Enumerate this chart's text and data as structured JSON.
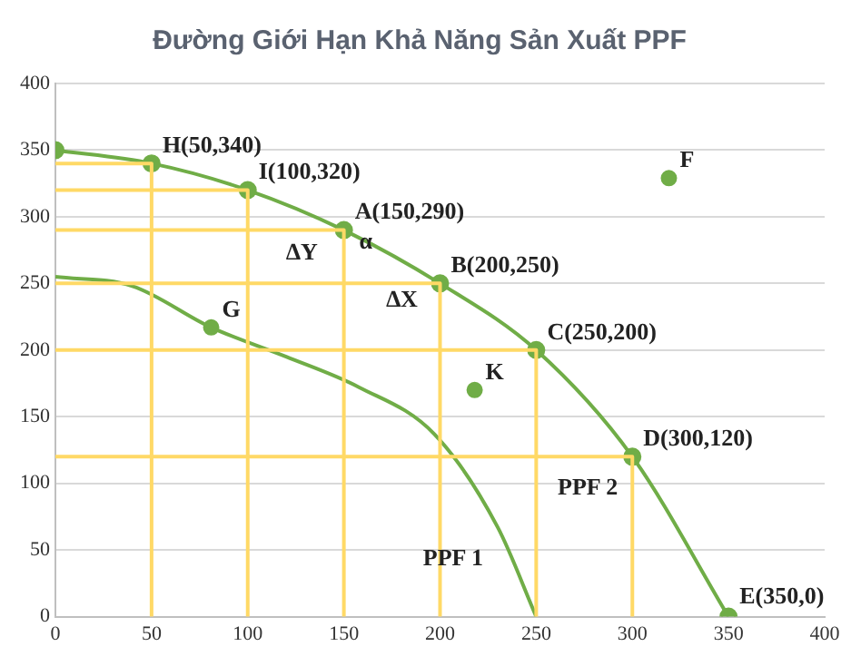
{
  "chart_data": {
    "type": "line",
    "title": "Đường Giới Hạn Khả Năng Sản Xuất PPF",
    "series": [
      {
        "color": "#ffd966",
        "marker": "none",
        "x": [
          0,
          50,
          50
        ],
        "values": [
          340,
          340,
          0
        ]
      },
      {
        "color": "#ffd966",
        "marker": "none",
        "x": [
          0,
          100,
          100
        ],
        "values": [
          320,
          320,
          0
        ]
      },
      {
        "color": "#ffd966",
        "marker": "none",
        "x": [
          0,
          150,
          150
        ],
        "values": [
          290,
          290,
          0
        ]
      },
      {
        "color": "#ffd966",
        "marker": "none",
        "x": [
          0,
          200,
          200
        ],
        "values": [
          250,
          250,
          0
        ]
      },
      {
        "color": "#ffd966",
        "marker": "none",
        "x": [
          0,
          250,
          250
        ],
        "values": [
          200,
          200,
          0
        ]
      },
      {
        "color": "#ffd966",
        "marker": "none",
        "x": [
          0,
          300,
          300
        ],
        "values": [
          120,
          120,
          0
        ]
      },
      {
        "name": "PPF 1",
        "color": "#70ad47",
        "marker": "none",
        "x": [
          0,
          40,
          81,
          120,
          158,
          197,
          230,
          250
        ],
        "values": [
          255,
          248,
          217,
          195,
          172,
          137,
          67,
          0
        ]
      },
      {
        "name": "PPF 2",
        "color": "#70ad47",
        "marker": "circle",
        "x": [
          0,
          50,
          100,
          150,
          200,
          250,
          300,
          350
        ],
        "values": [
          350,
          340,
          320,
          290,
          250,
          200,
          120,
          0
        ]
      },
      {
        "type": "scatter",
        "color": "#70ad47",
        "marker": "circle",
        "x": [
          81,
          319,
          218
        ],
        "values": [
          217,
          329,
          170
        ]
      }
    ],
    "xlim": [
      0,
      400
    ],
    "xticks": [
      0,
      50,
      100,
      150,
      200,
      250,
      300,
      350,
      400
    ],
    "ylim": [
      0,
      400
    ],
    "yticks": [
      0,
      50,
      100,
      150,
      200,
      250,
      300,
      350,
      400
    ],
    "grid": "y",
    "legend": false,
    "annotations": [
      {
        "text": "H(50,340)",
        "x": 50,
        "y": 340
      },
      {
        "text": "I(100,320)",
        "x": 100,
        "y": 320
      },
      {
        "text": "A(150,290)",
        "x": 150,
        "y": 290
      },
      {
        "text": "B(200,250)",
        "x": 200,
        "y": 250
      },
      {
        "text": "C(250,200)",
        "x": 250,
        "y": 200
      },
      {
        "text": "D(300,120)",
        "x": 300,
        "y": 120
      },
      {
        "text": "E(350,0)",
        "x": 350,
        "y": 0
      },
      {
        "text": "F",
        "x": 319,
        "y": 329
      },
      {
        "text": "G",
        "x": 81,
        "y": 217
      },
      {
        "text": "K",
        "x": 218,
        "y": 170
      },
      "∆Y",
      "∆X",
      "α"
    ]
  }
}
